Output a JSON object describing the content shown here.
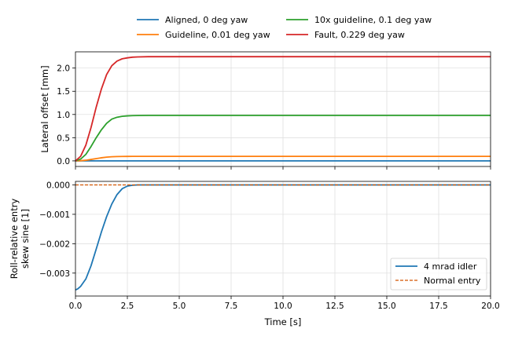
{
  "chart_data": [
    {
      "type": "line",
      "title": "",
      "ylabel": "Lateral offset [mm]",
      "xlabel": "",
      "xlim": [
        0,
        20
      ],
      "ylim": [
        -0.12,
        2.35
      ],
      "grid": true,
      "legend_placement": "top-center (above plot, 2 columns)",
      "x_ticks": [
        0,
        2.5,
        5,
        7.5,
        10,
        12.5,
        15,
        17.5,
        20
      ],
      "x_tick_labels_shown": false,
      "y_ticks": [
        0.0,
        0.5,
        1.0,
        1.5,
        2.0
      ],
      "y_tick_labels": [
        "0.0",
        "0.5",
        "1.0",
        "1.5",
        "2.0"
      ],
      "x": [
        0,
        0.25,
        0.5,
        0.75,
        1.0,
        1.25,
        1.5,
        1.75,
        2.0,
        2.25,
        2.5,
        2.75,
        3.0,
        3.5,
        4,
        5,
        6,
        8,
        10,
        12,
        14,
        16,
        18,
        20
      ],
      "series": [
        {
          "name": "Aligned, 0 deg yaw",
          "color": "#1f77b4",
          "style": "solid",
          "values": [
            0,
            0,
            0,
            0,
            0,
            0,
            0,
            0,
            0,
            0,
            0,
            0,
            0,
            0,
            0,
            0,
            0,
            0,
            0,
            0,
            0,
            0,
            0,
            0
          ]
        },
        {
          "name": "Guideline, 0.01 deg yaw",
          "color": "#ff7f0e",
          "style": "solid",
          "values": [
            0,
            0.004,
            0.014,
            0.031,
            0.05,
            0.067,
            0.081,
            0.09,
            0.094,
            0.096,
            0.097,
            0.098,
            0.098,
            0.098,
            0.098,
            0.098,
            0.098,
            0.098,
            0.098,
            0.098,
            0.098,
            0.098,
            0.098,
            0.098
          ]
        },
        {
          "name": "10x guideline, 0.1 deg yaw",
          "color": "#2ca02c",
          "style": "solid",
          "values": [
            0,
            0.04,
            0.14,
            0.31,
            0.5,
            0.67,
            0.81,
            0.9,
            0.94,
            0.96,
            0.97,
            0.975,
            0.978,
            0.98,
            0.98,
            0.98,
            0.98,
            0.98,
            0.98,
            0.98,
            0.98,
            0.98,
            0.98,
            0.98
          ]
        },
        {
          "name": "Fault, 0.229 deg yaw",
          "color": "#d62728",
          "style": "solid",
          "values": [
            0,
            0.1,
            0.34,
            0.72,
            1.16,
            1.55,
            1.86,
            2.05,
            2.15,
            2.2,
            2.22,
            2.235,
            2.24,
            2.245,
            2.245,
            2.245,
            2.245,
            2.245,
            2.245,
            2.245,
            2.245,
            2.245,
            2.245,
            2.245
          ]
        }
      ]
    },
    {
      "type": "line",
      "title": "",
      "ylabel": "Roll-relative entry skew sine [1]",
      "ylabel_lines": [
        "Roll-relative entry",
        "skew sine [1]"
      ],
      "xlabel": "Time [s]",
      "xlim": [
        0,
        20
      ],
      "ylim": [
        -0.00378,
        0.00012
      ],
      "grid": true,
      "legend_placement": "lower right",
      "x_ticks": [
        0,
        2.5,
        5,
        7.5,
        10,
        12.5,
        15,
        17.5,
        20
      ],
      "x_tick_labels": [
        "0.0",
        "2.5",
        "5.0",
        "7.5",
        "10.0",
        "12.5",
        "15.0",
        "17.5",
        "20.0"
      ],
      "y_ticks": [
        -0.003,
        -0.002,
        -0.001,
        0.0
      ],
      "y_tick_labels": [
        "−0.003",
        "−0.002",
        "−0.001",
        "0.000"
      ],
      "x": [
        0,
        0.1,
        0.25,
        0.5,
        0.75,
        1.0,
        1.25,
        1.5,
        1.75,
        2.0,
        2.25,
        2.5,
        2.75,
        3.0,
        3.5,
        4,
        5,
        6,
        8,
        10,
        12,
        14,
        16,
        18,
        20
      ],
      "series": [
        {
          "name": "4 mrad idler",
          "color": "#1f77b4",
          "style": "solid",
          "values": [
            -0.00357,
            -0.00354,
            -0.00345,
            -0.0032,
            -0.00275,
            -0.00218,
            -0.0016,
            -0.00108,
            -0.00065,
            -0.00033,
            -0.00013,
            -4e-05,
            -1e-05,
            0,
            0,
            0,
            0,
            0,
            0,
            0,
            0,
            0,
            0,
            0,
            0
          ]
        },
        {
          "name": "Normal entry",
          "color": "#d35400",
          "style": "dashed",
          "values": [
            0,
            0,
            0,
            0,
            0,
            0,
            0,
            0,
            0,
            0,
            0,
            0,
            0,
            0,
            0,
            0,
            0,
            0,
            0,
            0,
            0,
            0,
            0,
            0,
            0
          ]
        }
      ]
    }
  ]
}
